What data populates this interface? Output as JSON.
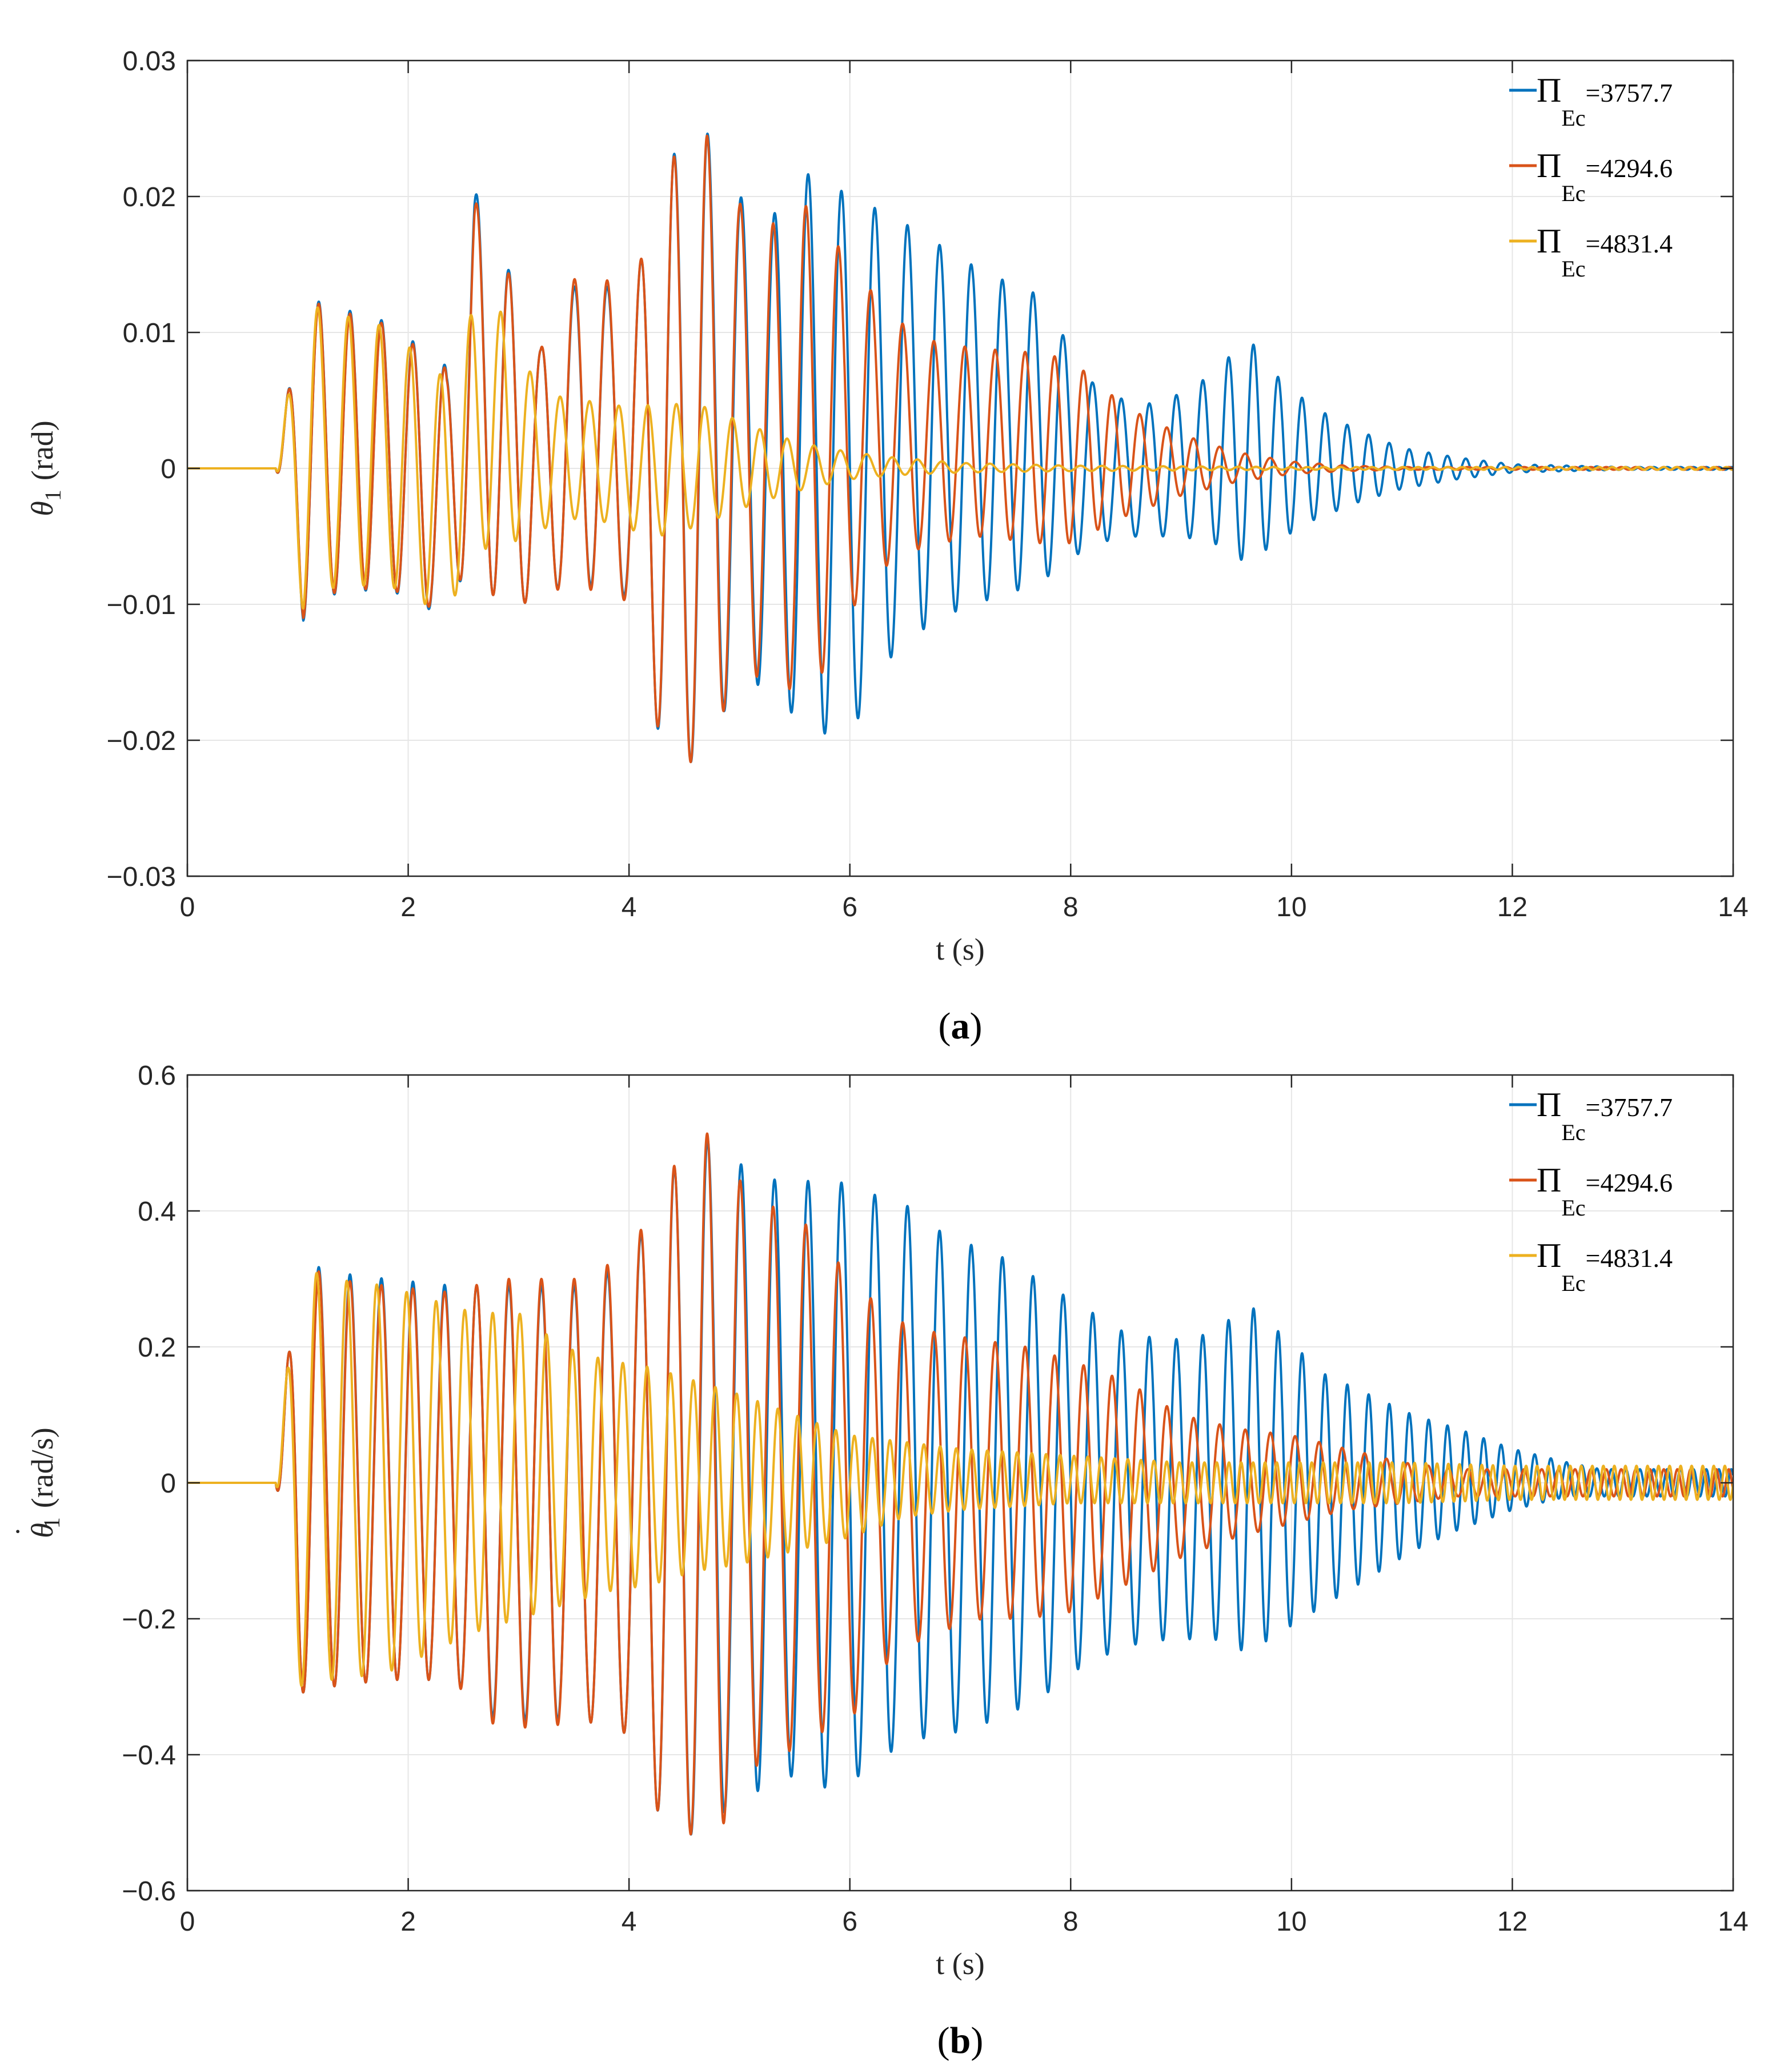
{
  "colors": {
    "blue": "#0072BD",
    "orange": "#D95319",
    "yellow": "#EDB120",
    "grid": "#e6e6e6",
    "axis": "#262626"
  },
  "legend_symbol": "Π",
  "legend_subscript": "Ec",
  "chart_data": [
    {
      "type": "line",
      "panel": "a",
      "caption_open": "(",
      "caption_letter": "a",
      "caption_close": ")",
      "xlabel": "t (s)",
      "ylabel_symbol": "θ",
      "ylabel_sub": "1",
      "ylabel_unit": "(rad)",
      "xlim": [
        0,
        14
      ],
      "ylim": [
        -0.03,
        0.03
      ],
      "xticks": [
        0,
        2,
        4,
        6,
        8,
        10,
        12,
        14
      ],
      "xtick_labels": [
        "0",
        "2",
        "4",
        "6",
        "8",
        "10",
        "12",
        "14"
      ],
      "yticks": [
        -0.03,
        -0.02,
        -0.01,
        0,
        0.01,
        0.02,
        0.03
      ],
      "ytick_labels": [
        "−0.03",
        "−0.02",
        "−0.01",
        "0",
        "0.01",
        "0.02",
        "0.03"
      ],
      "grid": true,
      "legend_position": "top-right",
      "series": [
        {
          "name": "Π_Ec=3757.7",
          "label_value": "=3757.7",
          "color": "#0072BD",
          "envelope_t": [
            0,
            0.8,
            1.05,
            1.3,
            1.8,
            2.35,
            2.6,
            2.85,
            3.2,
            3.6,
            4.0,
            4.35,
            4.7,
            5.0,
            5.3,
            5.65,
            6.0,
            6.4,
            6.8,
            7.2,
            7.7,
            8.2,
            8.6,
            9.0,
            9.3,
            9.6,
            9.9,
            10.2,
            10.6,
            11.0,
            11.5,
            12.0,
            12.5,
            13.0,
            14.0
          ],
          "envelope_max": [
            0,
            0,
            0.0126,
            0.012,
            0.0108,
            0.0075,
            0.0205,
            0.0158,
            0.0088,
            0.0148,
            0.012,
            0.0228,
            0.0248,
            0.02,
            0.0186,
            0.0219,
            0.02,
            0.0185,
            0.0165,
            0.0145,
            0.0128,
            0.0063,
            0.0045,
            0.0055,
            0.007,
            0.0097,
            0.0065,
            0.0045,
            0.0028,
            0.0015,
            0.0008,
            0.0003,
            0.0002,
            0.0001,
            0.0001
          ],
          "envelope_min": [
            0,
            0,
            -0.0112,
            -0.0093,
            -0.0088,
            -0.011,
            -0.0055,
            -0.0112,
            -0.009,
            -0.0085,
            -0.0095,
            -0.0225,
            -0.021,
            -0.0152,
            -0.0165,
            -0.0195,
            -0.0195,
            -0.0135,
            -0.011,
            -0.0098,
            -0.0085,
            -0.0055,
            -0.005,
            -0.005,
            -0.0055,
            -0.007,
            -0.0052,
            -0.0038,
            -0.0025,
            -0.0015,
            -0.0008,
            -0.0003,
            -0.0002,
            -0.0001,
            -0.0001
          ],
          "freq_t": [
            0,
            2.0,
            4.0,
            6.0,
            8.0,
            10.0,
            12.0,
            14.0
          ],
          "freq_hz": [
            3.6,
            3.5,
            3.3,
            3.3,
            3.7,
            4.6,
            6.5,
            9.0
          ]
        },
        {
          "name": "Π_Ec=4294.6",
          "label_value": "=4294.6",
          "color": "#D95319",
          "envelope_t": [
            0,
            0.8,
            1.05,
            1.3,
            1.8,
            2.35,
            2.6,
            2.85,
            3.2,
            3.6,
            4.0,
            4.35,
            4.7,
            5.0,
            5.3,
            5.65,
            6.0,
            6.4,
            6.8,
            7.2,
            7.7,
            8.0,
            8.5,
            9.0,
            9.5,
            10.0,
            10.5,
            11.0,
            12.0,
            14.0
          ],
          "envelope_max": [
            0,
            0,
            0.0125,
            0.0118,
            0.0106,
            0.0073,
            0.0198,
            0.0155,
            0.0088,
            0.0155,
            0.0122,
            0.0226,
            0.0246,
            0.0195,
            0.018,
            0.0195,
            0.015,
            0.011,
            0.0092,
            0.0088,
            0.0085,
            0.008,
            0.0045,
            0.0025,
            0.0012,
            0.0005,
            0.0002,
            0.0001,
            0.0001,
            0.0001
          ],
          "envelope_min": [
            0,
            0,
            -0.011,
            -0.0092,
            -0.0087,
            -0.0108,
            -0.0055,
            -0.0112,
            -0.009,
            -0.0088,
            -0.0098,
            -0.0222,
            -0.0212,
            -0.0148,
            -0.0158,
            -0.0168,
            -0.0105,
            -0.0065,
            -0.0055,
            -0.005,
            -0.0055,
            -0.0055,
            -0.0035,
            -0.002,
            -0.001,
            -0.0004,
            -0.0002,
            -0.0001,
            -0.0001,
            -0.0001
          ],
          "freq_t": [
            0,
            2.0,
            4.0,
            6.0,
            8.0,
            10.0,
            12.0,
            14.0
          ],
          "freq_hz": [
            3.6,
            3.5,
            3.3,
            3.4,
            3.8,
            4.5,
            6.0,
            9.0
          ]
        },
        {
          "name": "Π_Ec=4831.4",
          "label_value": "=4831.4",
          "color": "#EDB120",
          "envelope_t": [
            0,
            0.8,
            1.05,
            1.3,
            1.8,
            2.35,
            2.6,
            2.85,
            3.2,
            3.6,
            4.0,
            4.35,
            4.7,
            5.0,
            5.3,
            5.6,
            6.0,
            6.4,
            7.0,
            8.0,
            10.0,
            14.0
          ],
          "envelope_max": [
            0,
            0,
            0.0122,
            0.0115,
            0.0104,
            0.0065,
            0.012,
            0.0115,
            0.0055,
            0.005,
            0.0045,
            0.0048,
            0.0045,
            0.0035,
            0.0025,
            0.0018,
            0.0012,
            0.0008,
            0.0004,
            0.0002,
            0.0001,
            0.0001
          ],
          "envelope_min": [
            0,
            0,
            -0.0105,
            -0.0088,
            -0.0085,
            -0.0108,
            -0.006,
            -0.0058,
            -0.0045,
            -0.0035,
            -0.0045,
            -0.005,
            -0.004,
            -0.003,
            -0.0022,
            -0.0015,
            -0.0008,
            -0.0005,
            -0.0003,
            -0.0002,
            -0.0001,
            -0.0001
          ],
          "freq_t": [
            0,
            2.0,
            4.0,
            6.0,
            8.0,
            10.0,
            12.0,
            14.0
          ],
          "freq_hz": [
            3.6,
            3.6,
            3.8,
            4.2,
            5.0,
            6.5,
            8.0,
            9.0
          ]
        }
      ]
    },
    {
      "type": "line",
      "panel": "b",
      "caption_open": "(",
      "caption_letter": "b",
      "caption_close": ")",
      "xlabel": "t (s)",
      "ylabel_symbol": "θ",
      "ylabel_dot": "˙",
      "ylabel_sub": "1",
      "ylabel_unit": "(rad/s)",
      "xlim": [
        0,
        14
      ],
      "ylim": [
        -0.6,
        0.6
      ],
      "xticks": [
        0,
        2,
        4,
        6,
        8,
        10,
        12,
        14
      ],
      "xtick_labels": [
        "0",
        "2",
        "4",
        "6",
        "8",
        "10",
        "12",
        "14"
      ],
      "yticks": [
        -0.6,
        -0.4,
        -0.2,
        0,
        0.2,
        0.4,
        0.6
      ],
      "ytick_labels": [
        "−0.6",
        "−0.4",
        "−0.2",
        "0",
        "0.2",
        "0.4",
        "0.6"
      ],
      "grid": true,
      "legend_position": "top-right",
      "series": [
        {
          "name": "Π_Ec=3757.7",
          "label_value": "=3757.7",
          "color": "#0072BD",
          "envelope_t": [
            0,
            0.8,
            1.0,
            1.3,
            1.8,
            2.4,
            2.8,
            3.2,
            3.6,
            4.0,
            4.3,
            4.6,
            4.9,
            5.2,
            5.5,
            5.8,
            6.1,
            6.5,
            6.9,
            7.3,
            7.7,
            8.1,
            8.5,
            8.9,
            9.3,
            9.6,
            9.9,
            10.3,
            10.7,
            11.1,
            11.5,
            12.0,
            12.5,
            12.8,
            14.0
          ],
          "envelope_max": [
            0,
            0,
            0.33,
            0.31,
            0.3,
            0.29,
            0.29,
            0.29,
            0.29,
            0.33,
            0.43,
            0.52,
            0.48,
            0.45,
            0.44,
            0.45,
            0.43,
            0.41,
            0.36,
            0.34,
            0.3,
            0.26,
            0.22,
            0.21,
            0.22,
            0.265,
            0.22,
            0.16,
            0.13,
            0.1,
            0.08,
            0.05,
            0.03,
            0.02,
            0.02
          ],
          "envelope_min": [
            0,
            0,
            -0.31,
            -0.3,
            -0.29,
            -0.29,
            -0.35,
            -0.35,
            -0.35,
            -0.37,
            -0.5,
            -0.52,
            -0.48,
            -0.45,
            -0.43,
            -0.45,
            -0.43,
            -0.38,
            -0.37,
            -0.35,
            -0.32,
            -0.27,
            -0.24,
            -0.23,
            -0.23,
            -0.25,
            -0.22,
            -0.18,
            -0.14,
            -0.1,
            -0.07,
            -0.04,
            -0.02,
            -0.02,
            -0.02
          ],
          "freq_t": [
            0,
            2.0,
            4.0,
            6.0,
            8.0,
            10.0,
            12.0,
            14.0
          ],
          "freq_hz": [
            3.6,
            3.5,
            3.3,
            3.3,
            3.7,
            4.6,
            6.5,
            9.0
          ]
        },
        {
          "name": "Π_Ec=4294.6",
          "label_value": "=4294.6",
          "color": "#D95319",
          "envelope_t": [
            0,
            0.8,
            1.0,
            1.3,
            1.8,
            2.4,
            2.8,
            3.2,
            3.6,
            4.0,
            4.3,
            4.6,
            4.8,
            5.1,
            5.4,
            5.7,
            6.0,
            6.4,
            6.8,
            7.2,
            7.6,
            8.0,
            8.5,
            9.0,
            9.5,
            10.0,
            10.5,
            11.0,
            11.5,
            12.0,
            13.0,
            14.0
          ],
          "envelope_max": [
            0,
            0,
            0.33,
            0.3,
            0.29,
            0.28,
            0.3,
            0.3,
            0.3,
            0.34,
            0.43,
            0.53,
            0.5,
            0.42,
            0.4,
            0.37,
            0.3,
            0.24,
            0.22,
            0.21,
            0.2,
            0.18,
            0.15,
            0.1,
            0.08,
            0.07,
            0.05,
            0.03,
            0.02,
            0.02,
            0.02,
            0.02
          ],
          "envelope_min": [
            0,
            0,
            -0.31,
            -0.3,
            -0.29,
            -0.29,
            -0.36,
            -0.36,
            -0.35,
            -0.37,
            -0.5,
            -0.52,
            -0.52,
            -0.42,
            -0.4,
            -0.37,
            -0.35,
            -0.25,
            -0.22,
            -0.2,
            -0.2,
            -0.19,
            -0.15,
            -0.11,
            -0.08,
            -0.06,
            -0.04,
            -0.03,
            -0.02,
            -0.02,
            -0.02,
            -0.02
          ],
          "freq_t": [
            0,
            2.0,
            4.0,
            6.0,
            8.0,
            10.0,
            12.0,
            14.0
          ],
          "freq_hz": [
            3.6,
            3.5,
            3.3,
            3.4,
            3.8,
            4.5,
            6.0,
            9.0
          ]
        },
        {
          "name": "Π_Ec=4831.4",
          "label_value": "=4831.4",
          "color": "#EDB120",
          "envelope_t": [
            0,
            0.8,
            1.0,
            1.3,
            1.8,
            2.2,
            2.6,
            3.0,
            3.4,
            3.8,
            4.2,
            4.6,
            5.0,
            5.5,
            6.0,
            6.5,
            7.0,
            8.0,
            9.0,
            10.0,
            11.0,
            12.0,
            14.0
          ],
          "envelope_max": [
            0,
            0,
            0.32,
            0.3,
            0.29,
            0.27,
            0.25,
            0.25,
            0.2,
            0.18,
            0.17,
            0.15,
            0.13,
            0.1,
            0.07,
            0.06,
            0.05,
            0.04,
            0.03,
            0.03,
            0.03,
            0.025,
            0.025
          ],
          "envelope_min": [
            0,
            0,
            -0.3,
            -0.29,
            -0.28,
            -0.25,
            -0.22,
            -0.2,
            -0.18,
            -0.16,
            -0.15,
            -0.13,
            -0.12,
            -0.1,
            -0.08,
            -0.05,
            -0.04,
            -0.03,
            -0.03,
            -0.03,
            -0.03,
            -0.025,
            -0.025
          ],
          "freq_t": [
            0,
            2.0,
            4.0,
            6.0,
            8.0,
            10.0,
            12.0,
            14.0
          ],
          "freq_hz": [
            3.6,
            3.7,
            4.5,
            6.0,
            8.0,
            9.5,
            10.0,
            10.0
          ]
        }
      ]
    }
  ]
}
